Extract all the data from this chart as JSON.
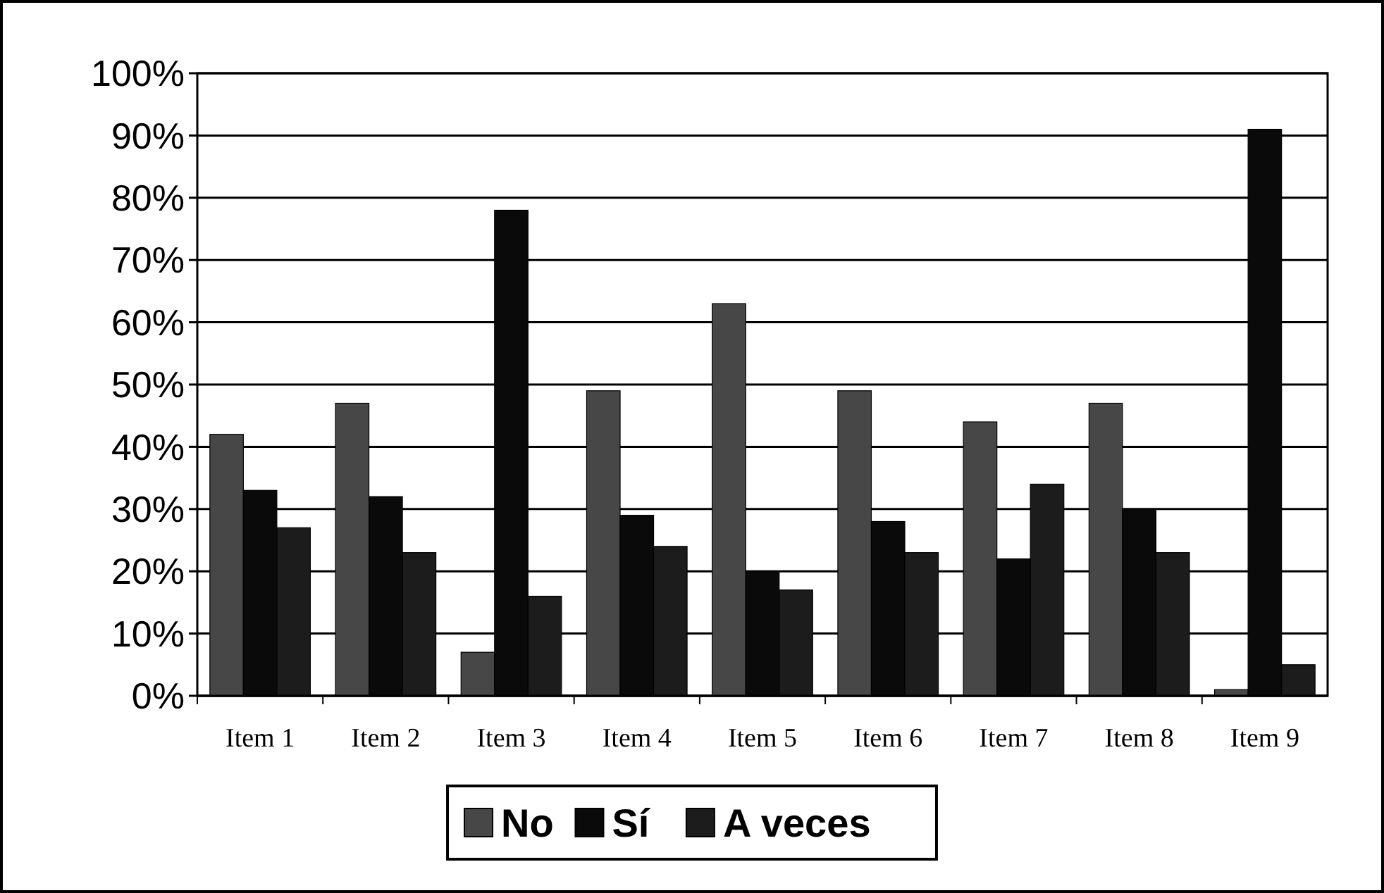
{
  "chart_data": {
    "type": "bar",
    "categories": [
      "Item 1",
      "Item 2",
      "Item 3",
      "Item 4",
      "Item 5",
      "Item 6",
      "Item 7",
      "Item 8",
      "Item 9"
    ],
    "series": [
      {
        "name": "No",
        "color": "#474747",
        "values": [
          42,
          47,
          7,
          49,
          63,
          49,
          44,
          47,
          1
        ]
      },
      {
        "name": "Sí",
        "color": "#0a0a0a",
        "values": [
          33,
          32,
          78,
          29,
          20,
          28,
          22,
          30,
          91
        ]
      },
      {
        "name": "A veces",
        "color": "#1c1c1c",
        "values": [
          27,
          23,
          16,
          24,
          17,
          23,
          34,
          23,
          5
        ]
      }
    ],
    "ylim": [
      0,
      100
    ],
    "yticks": [
      {
        "value": 0,
        "label": "0%"
      },
      {
        "value": 10,
        "label": "10%"
      },
      {
        "value": 20,
        "label": "20%"
      },
      {
        "value": 30,
        "label": "30%"
      },
      {
        "value": 40,
        "label": "40%"
      },
      {
        "value": 50,
        "label": "50%"
      },
      {
        "value": 60,
        "label": "60%"
      },
      {
        "value": 70,
        "label": "70%"
      },
      {
        "value": 80,
        "label": "80%"
      },
      {
        "value": 90,
        "label": "90%"
      },
      {
        "value": 100,
        "label": "100%"
      }
    ],
    "grid": "y",
    "legend": "bottom"
  }
}
